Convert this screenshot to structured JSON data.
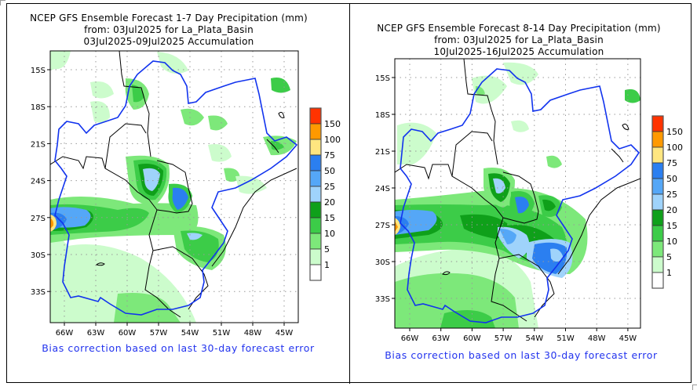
{
  "panels": [
    {
      "id": "week1",
      "title_line1": "NCEP GFS Ensemble Forecast 1-7 Day Precipitation (mm)",
      "title_line2": "from: 03Jul2025   for La_Plata_Basin",
      "title_line3": "03Jul2025-09Jul2025 Accumulation",
      "lat_labels": [
        "15S",
        "18S",
        "21S",
        "24S",
        "27S",
        "30S",
        "33S"
      ],
      "lon_labels": [
        "66W",
        "63W",
        "60W",
        "57W",
        "54W",
        "51W",
        "48W",
        "45W"
      ],
      "footnote": "Bias correction based on last 30-day forecast error"
    },
    {
      "id": "week2",
      "title_line1": "NCEP GFS Ensemble Forecast 8-14 Day Precipitation (mm)",
      "title_line2": "from: 03Jul2025   for La_Plata_Basin",
      "title_line3": "10Jul2025-16Jul2025 Accumulation",
      "lat_labels": [
        "15S",
        "18S",
        "21S",
        "24S",
        "27S",
        "30S",
        "33S"
      ],
      "lon_labels": [
        "66W",
        "63W",
        "60W",
        "57W",
        "54W",
        "51W",
        "48W",
        "45W"
      ],
      "footnote": "Bias correction based on last 30-day forecast error"
    }
  ],
  "colorbar": {
    "unit": "mm",
    "levels": [
      "150",
      "100",
      "75",
      "50",
      "25",
      "20",
      "15",
      "10",
      "5",
      "1"
    ],
    "colors": [
      "#ff3300",
      "#ff9900",
      "#ffe680",
      "#2b7ff0",
      "#55a7f7",
      "#9fd3fb",
      "#0fa01a",
      "#3ccc48",
      "#7de87a",
      "#ccfccc",
      "#ffffff"
    ]
  },
  "colors": {
    "basin_outline": "#1133ee",
    "borders": "#000000",
    "footnote": "#2233ee"
  }
}
